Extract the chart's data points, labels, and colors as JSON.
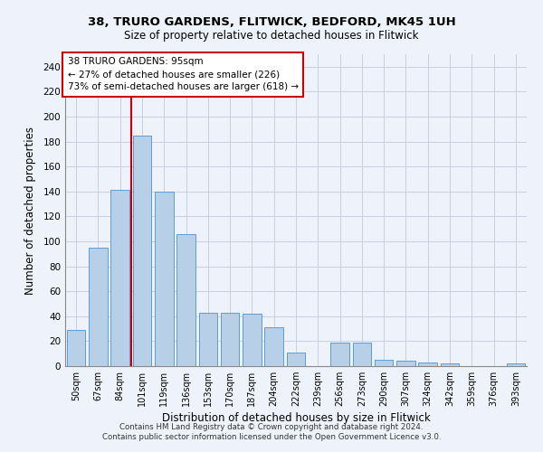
{
  "title_line1": "38, TRURO GARDENS, FLITWICK, BEDFORD, MK45 1UH",
  "title_line2": "Size of property relative to detached houses in Flitwick",
  "xlabel": "Distribution of detached houses by size in Flitwick",
  "ylabel": "Number of detached properties",
  "categories": [
    "50sqm",
    "67sqm",
    "84sqm",
    "101sqm",
    "119sqm",
    "136sqm",
    "153sqm",
    "170sqm",
    "187sqm",
    "204sqm",
    "222sqm",
    "239sqm",
    "256sqm",
    "273sqm",
    "290sqm",
    "307sqm",
    "324sqm",
    "342sqm",
    "359sqm",
    "376sqm",
    "393sqm"
  ],
  "values": [
    29,
    95,
    141,
    185,
    140,
    106,
    43,
    43,
    42,
    31,
    11,
    0,
    19,
    19,
    5,
    4,
    3,
    2,
    0,
    0,
    2
  ],
  "bar_color": "#b8cfe8",
  "bar_edge_color": "#5b9bd5",
  "highlight_color": "#cc0000",
  "annotation_text": "38 TRURO GARDENS: 95sqm\n← 27% of detached houses are smaller (226)\n73% of semi-detached houses are larger (618) →",
  "annotation_box_color": "#ffffff",
  "annotation_box_edge_color": "#cc0000",
  "vline_x": 3,
  "ylim": [
    0,
    250
  ],
  "yticks": [
    0,
    20,
    40,
    60,
    80,
    100,
    120,
    140,
    160,
    180,
    200,
    220,
    240
  ],
  "footer_line1": "Contains HM Land Registry data © Crown copyright and database right 2024.",
  "footer_line2": "Contains public sector information licensed under the Open Government Licence v3.0.",
  "background_color": "#eef2fb",
  "grid_color": "#c8cfe0"
}
